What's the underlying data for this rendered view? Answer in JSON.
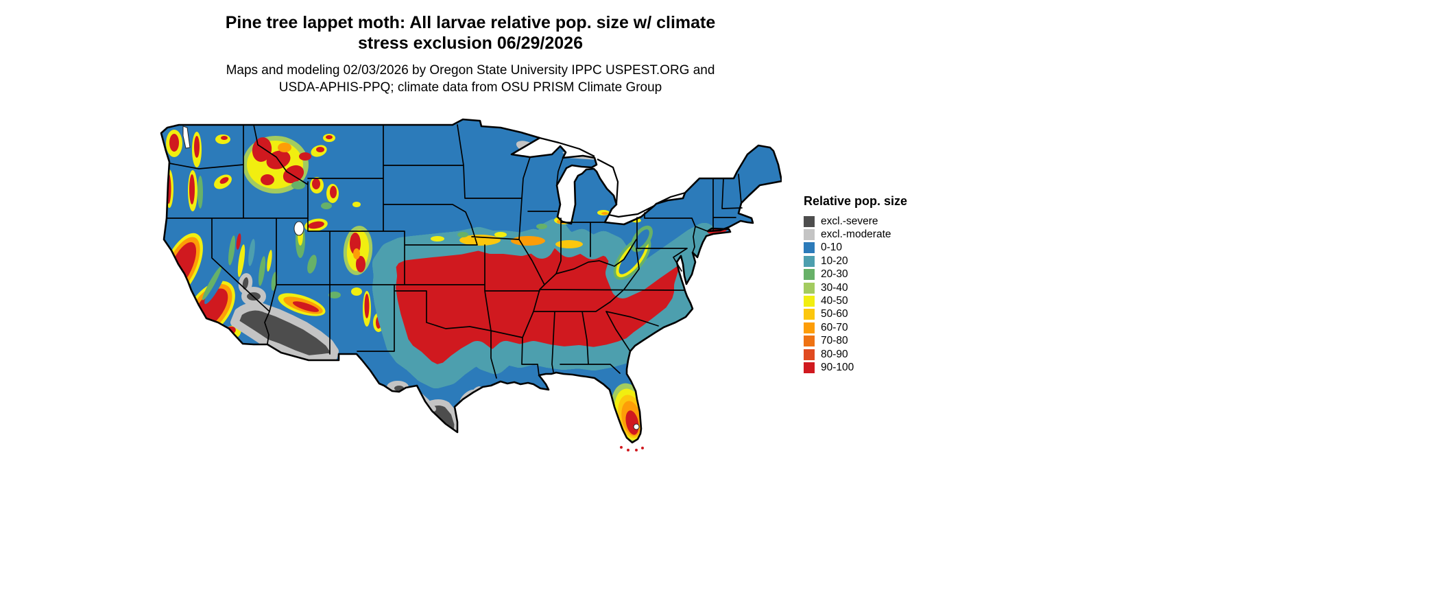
{
  "title": {
    "line1": "Pine tree lappet moth: All larvae relative pop. size w/ climate",
    "line2": "stress exclusion 06/29/2026"
  },
  "subtitle": {
    "line1": "Maps and modeling 02/03/2026 by Oregon State University IPPC USPEST.ORG and",
    "line2": "USDA-APHIS-PPQ; climate data from OSU PRISM Climate Group"
  },
  "legend": {
    "title": "Relative pop. size",
    "entries": [
      {
        "label": "excl.-severe",
        "color": "#4d4d4d"
      },
      {
        "label": "excl.-moderate",
        "color": "#c4c4c4"
      },
      {
        "label": "0-10",
        "color": "#2c7bba"
      },
      {
        "label": "10-20",
        "color": "#4d9fae"
      },
      {
        "label": "20-30",
        "color": "#67b168"
      },
      {
        "label": "30-40",
        "color": "#a3cb5f"
      },
      {
        "label": "40-50",
        "color": "#f1ee10"
      },
      {
        "label": "50-60",
        "color": "#fcc70d"
      },
      {
        "label": "60-70",
        "color": "#fd9d08"
      },
      {
        "label": "70-80",
        "color": "#ee7213"
      },
      {
        "label": "80-90",
        "color": "#e04a20"
      },
      {
        "label": "90-100",
        "color": "#d0191f"
      }
    ]
  }
}
